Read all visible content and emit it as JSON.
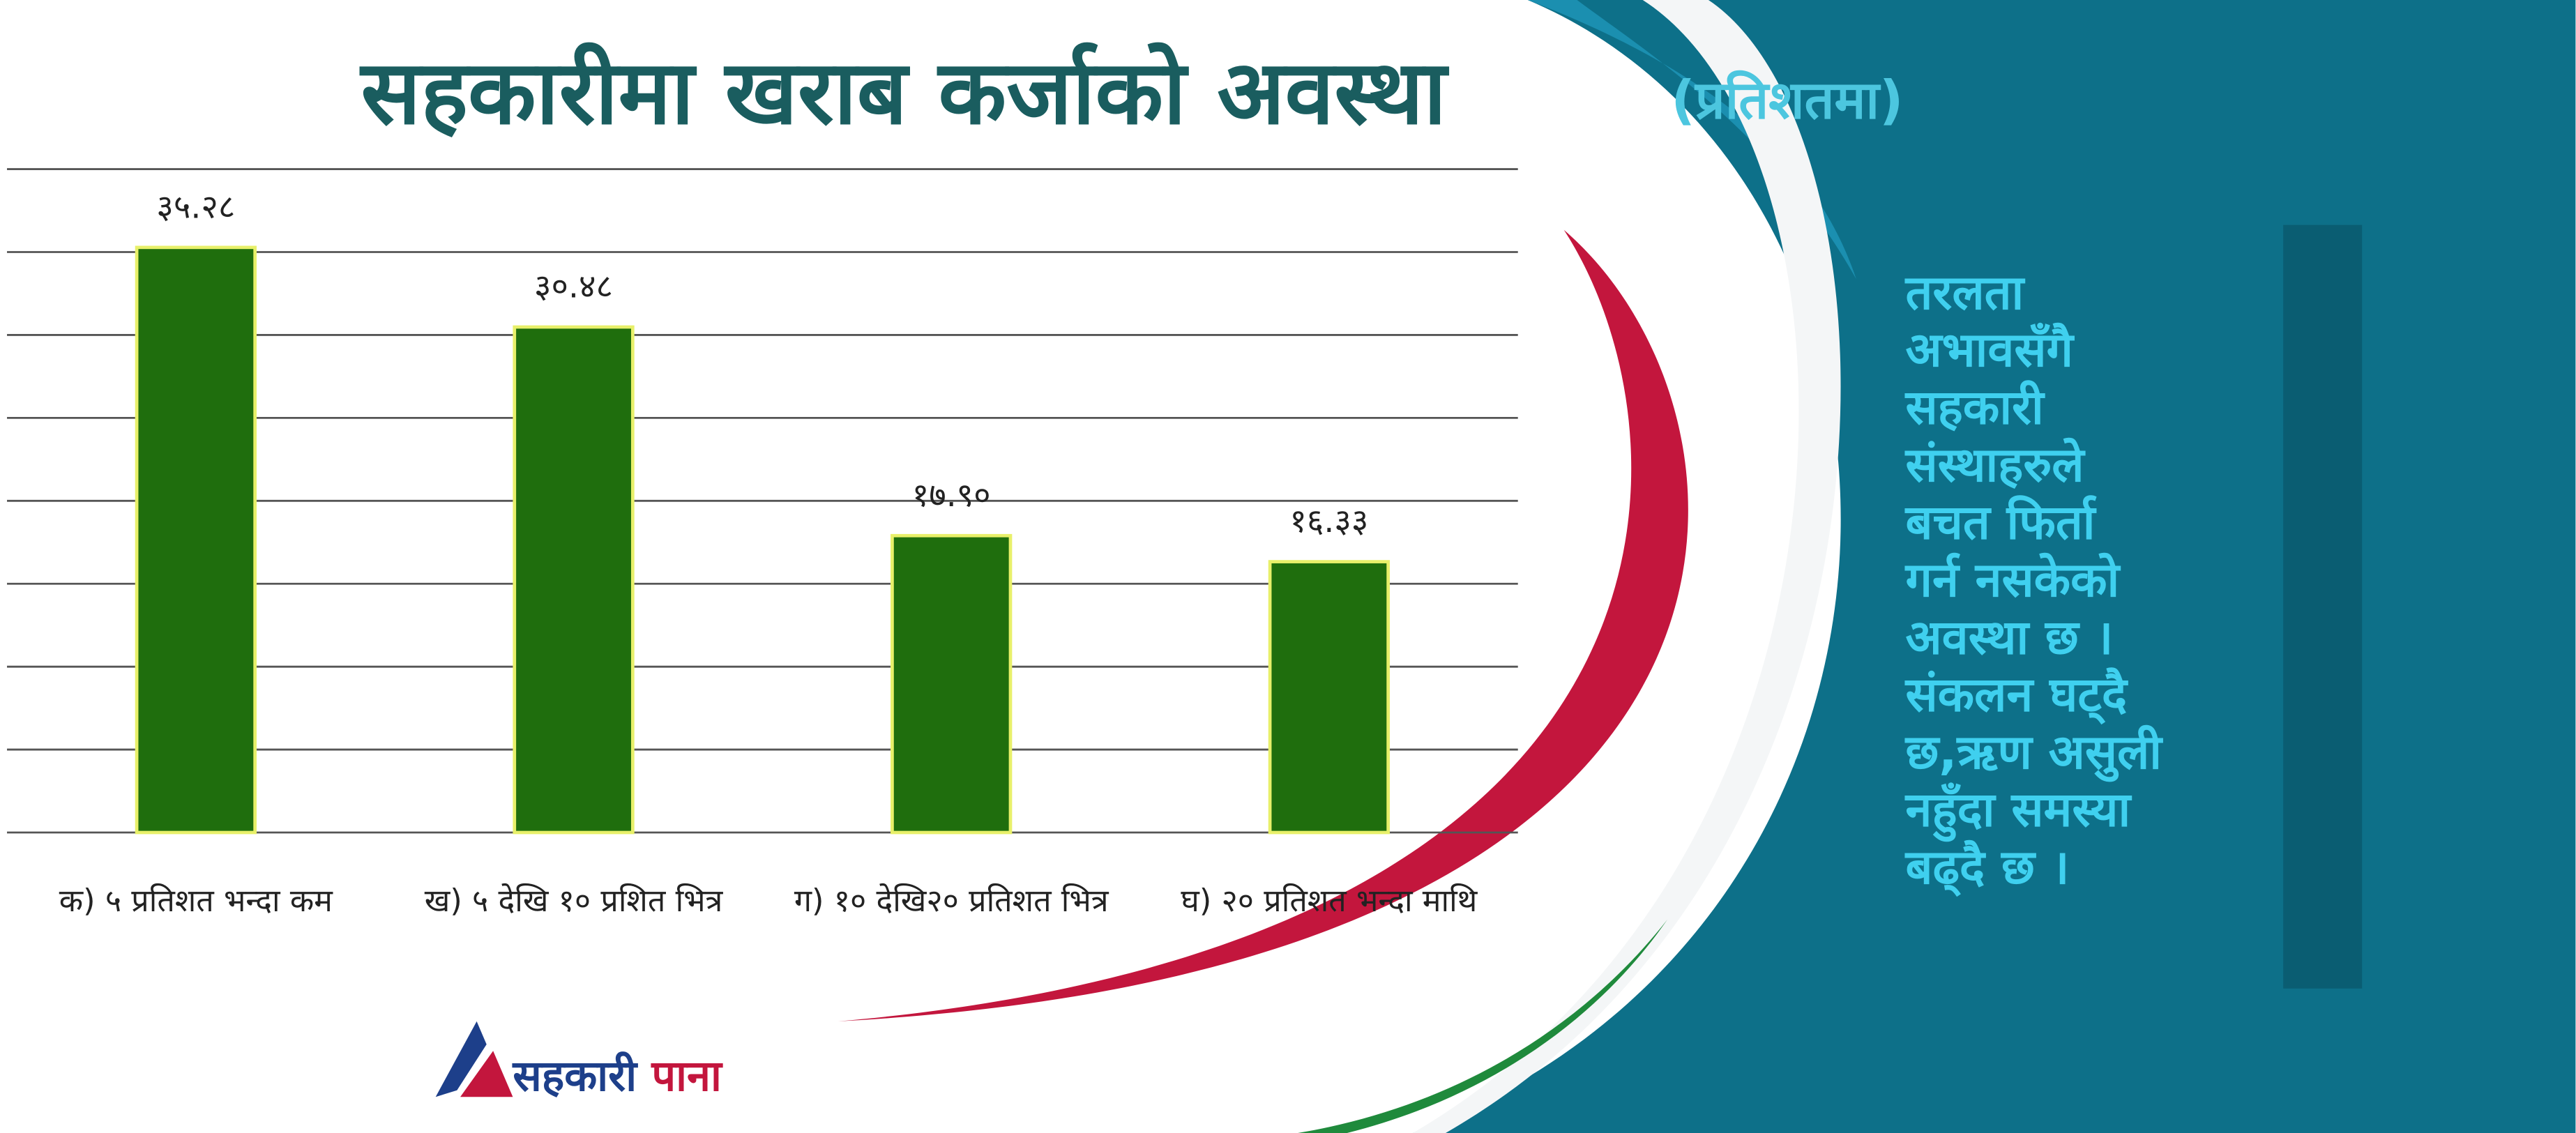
{
  "chart_data": {
    "type": "bar",
    "title": "सहकारीमा खराब कर्जाको अवस्था",
    "subtitle": "(प्रतिशतमा)",
    "categories": [
      "क) ५ प्रतिशत भन्दा कम",
      "ख) ५ देखि १० प्रशित भित्र",
      "ग) १० देखि२० प्रतिशत भित्र",
      "घ) २० प्रतिशत भन्दा माथि"
    ],
    "values": [
      35.28,
      30.48,
      17.9,
      16.33
    ],
    "value_labels": [
      "३५.२८",
      "३०.४८",
      "१७.९०",
      "१६.३३"
    ],
    "color": "#1f6e0d",
    "ylim": [
      0,
      40
    ],
    "yticks": [
      0,
      5,
      10,
      15,
      20,
      25,
      30,
      35,
      40
    ],
    "grid": true
  },
  "side_note": {
    "lines": [
      "तरलता",
      "अभावसँगै",
      "सहकारी",
      "संस्थाहरुले",
      "बचत फिर्ता",
      "गर्न नसकेको",
      "अवस्था छ ।",
      "संकलन घट्दै",
      "छ,ऋण असुली",
      "नहुँदा समस्या",
      "बढ्दै छ ।"
    ]
  },
  "logo": {
    "name_part1": "सहकारी",
    "name_part2": "पाना"
  }
}
